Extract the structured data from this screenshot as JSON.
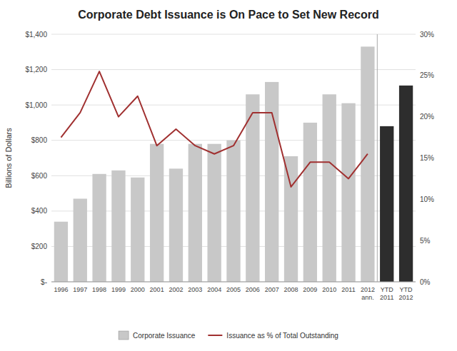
{
  "chart_data": {
    "type": "bar",
    "title": "Corporate Debt Issuance is On Pace to Set New Record",
    "y_label": "Billions of Dollars",
    "categories": [
      "1996",
      "1997",
      "1998",
      "1999",
      "2000",
      "2001",
      "2002",
      "2003",
      "2004",
      "2005",
      "2006",
      "2007",
      "2008",
      "2009",
      "2010",
      "2011",
      "2012\nann.",
      "YTD\n2011",
      "YTD\n2012"
    ],
    "series": [
      {
        "name": "Corporate Issuance",
        "type": "bar",
        "color": "#c8c8c8",
        "colors": [
          "#c8c8c8",
          "#c8c8c8",
          "#c8c8c8",
          "#c8c8c8",
          "#c8c8c8",
          "#c8c8c8",
          "#c8c8c8",
          "#c8c8c8",
          "#c8c8c8",
          "#c8c8c8",
          "#c8c8c8",
          "#c8c8c8",
          "#c8c8c8",
          "#c8c8c8",
          "#c8c8c8",
          "#c8c8c8",
          "#c8c8c8",
          "#2d2d2d",
          "#2d2d2d"
        ],
        "values": [
          340,
          470,
          610,
          630,
          590,
          780,
          640,
          780,
          780,
          800,
          1060,
          1130,
          710,
          900,
          1060,
          1010,
          1330,
          880,
          1110
        ]
      },
      {
        "name": "Issuance as % of Total Outstanding",
        "type": "line",
        "axis": "y2",
        "color": "#a03030",
        "values": [
          17.5,
          20.5,
          25.5,
          20.0,
          22.5,
          16.5,
          18.5,
          16.5,
          15.5,
          16.5,
          20.5,
          20.5,
          11.5,
          14.5,
          14.5,
          12.5,
          15.5,
          null,
          null
        ]
      }
    ],
    "ylim": [
      0,
      1400
    ],
    "yticks": [
      {
        "value": 0,
        "label": "$-"
      },
      {
        "value": 200,
        "label": "$200"
      },
      {
        "value": 400,
        "label": "$400"
      },
      {
        "value": 600,
        "label": "$600"
      },
      {
        "value": 800,
        "label": "$800"
      },
      {
        "value": 1000,
        "label": "$1,000"
      },
      {
        "value": 1200,
        "label": "$1,200"
      },
      {
        "value": 1400,
        "label": "$1,400"
      }
    ],
    "y2lim": [
      0,
      30
    ],
    "y2ticks": [
      {
        "value": 0,
        "label": "0%"
      },
      {
        "value": 5,
        "label": "5%"
      },
      {
        "value": 10,
        "label": "10%"
      },
      {
        "value": 15,
        "label": "15%"
      },
      {
        "value": 20,
        "label": "20%"
      },
      {
        "value": 25,
        "label": "25%"
      },
      {
        "value": 30,
        "label": "30%"
      }
    ],
    "grid": true,
    "legend": "bottom"
  }
}
